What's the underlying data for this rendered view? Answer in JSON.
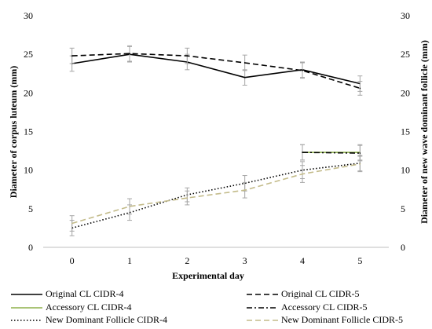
{
  "chart_data": {
    "type": "line",
    "title": "",
    "xlabel": "Experimental day",
    "ylabel": "Diameter of corpus luteum (mm)",
    "y2label": "Diameter of new wave dominant follicle (mm)",
    "x": [
      0,
      1,
      2,
      3,
      4,
      5
    ],
    "xlim": [
      -0.5,
      5.5
    ],
    "ylim": [
      0,
      30
    ],
    "yticks": [
      0,
      5,
      10,
      15,
      20,
      25,
      30
    ],
    "grid": false,
    "legend_position": "bottom",
    "series": [
      {
        "name": "Original CL CIDR-4",
        "color": "#000000",
        "dash": "solid",
        "x": [
          0,
          1,
          2,
          3,
          4,
          5
        ],
        "values": [
          23.8,
          25.0,
          24.0,
          22.0,
          23.0,
          21.2
        ],
        "err": [
          1.0,
          1.0,
          1.0,
          1.0,
          1.0,
          1.0
        ]
      },
      {
        "name": "Original CL CIDR-5",
        "color": "#000000",
        "dash": "dashed",
        "x": [
          0,
          1,
          2,
          3,
          4,
          5
        ],
        "values": [
          24.8,
          25.1,
          24.8,
          23.9,
          22.9,
          20.6
        ],
        "err": [
          1.0,
          1.0,
          1.0,
          1.0,
          1.0,
          0.9
        ]
      },
      {
        "name": "Accessory CL CIDR-4",
        "color": "#8db04a",
        "dash": "solid",
        "x": [
          4,
          5
        ],
        "values": [
          12.3,
          12.3
        ],
        "err": [
          1.0,
          1.0
        ]
      },
      {
        "name": "Accessory CL CIDR-5",
        "color": "#000000",
        "dash": "dashdot",
        "x": [
          4,
          5
        ],
        "values": [
          12.3,
          12.2
        ],
        "err": [
          1.0,
          1.0
        ]
      },
      {
        "name": "New Dominant Follicle CIDR-4",
        "color": "#000000",
        "dash": "dotted",
        "x": [
          0,
          1,
          2,
          3,
          4,
          5
        ],
        "values": [
          2.5,
          4.5,
          6.8,
          8.3,
          10.0,
          10.9
        ],
        "err": [
          1.0,
          1.0,
          0.9,
          1.0,
          1.1,
          1.0
        ]
      },
      {
        "name": "New Dominant Follicle CIDR-5",
        "color": "#c3bb8a",
        "dash": "dashed",
        "x": [
          0,
          1,
          2,
          3,
          4,
          5
        ],
        "values": [
          3.1,
          5.3,
          6.4,
          7.4,
          9.5,
          10.8
        ],
        "err": [
          1.0,
          1.0,
          0.9,
          1.0,
          1.1,
          1.0
        ]
      }
    ]
  }
}
